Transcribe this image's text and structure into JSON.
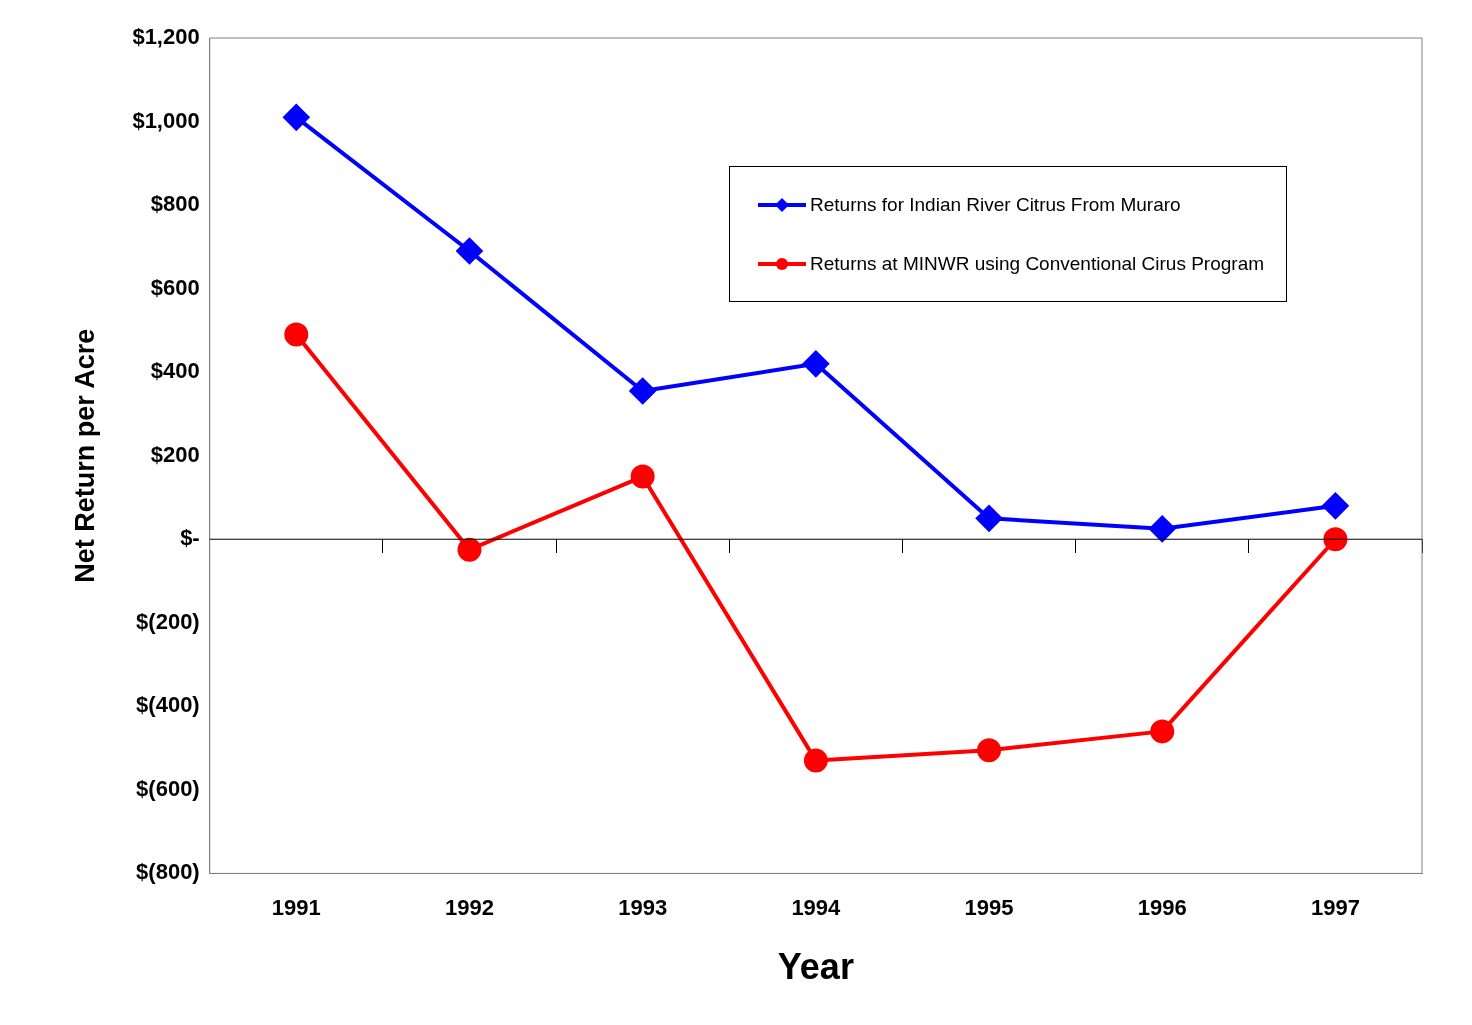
{
  "chart_data": {
    "type": "line",
    "xlabel": "Year",
    "ylabel": "Net Return per Acre",
    "categories": [
      "1991",
      "1992",
      "1993",
      "1994",
      "1995",
      "1996",
      "1997"
    ],
    "series": [
      {
        "name": "Returns for Indian River Citrus From Muraro",
        "color": "#0000ff",
        "marker": "diamond",
        "values": [
          1010,
          690,
          355,
          420,
          50,
          25,
          80
        ]
      },
      {
        "name": "Returns at MINWR using Conventional Cirus Program",
        "color": "#ff0000",
        "marker": "circle",
        "values": [
          490,
          -25,
          150,
          -530,
          -505,
          -460,
          0
        ]
      }
    ],
    "ylim": [
      -800,
      1200
    ],
    "yticks": [
      {
        "value": -800,
        "label": "$(800)"
      },
      {
        "value": -600,
        "label": "$(600)"
      },
      {
        "value": -400,
        "label": "$(400)"
      },
      {
        "value": -200,
        "label": "$(200)"
      },
      {
        "value": 0,
        "label": "$-"
      },
      {
        "value": 200,
        "label": "$200"
      },
      {
        "value": 400,
        "label": "$400"
      },
      {
        "value": 600,
        "label": "$600"
      },
      {
        "value": 800,
        "label": "$800"
      },
      {
        "value": 1000,
        "label": "$1,000"
      },
      {
        "value": 1200,
        "label": "$1,200"
      }
    ],
    "ref_lines": [
      {
        "axis": "y",
        "value": 0,
        "color": "#000000"
      }
    ],
    "grid": false,
    "legend": "top right",
    "line_style": "solid"
  }
}
